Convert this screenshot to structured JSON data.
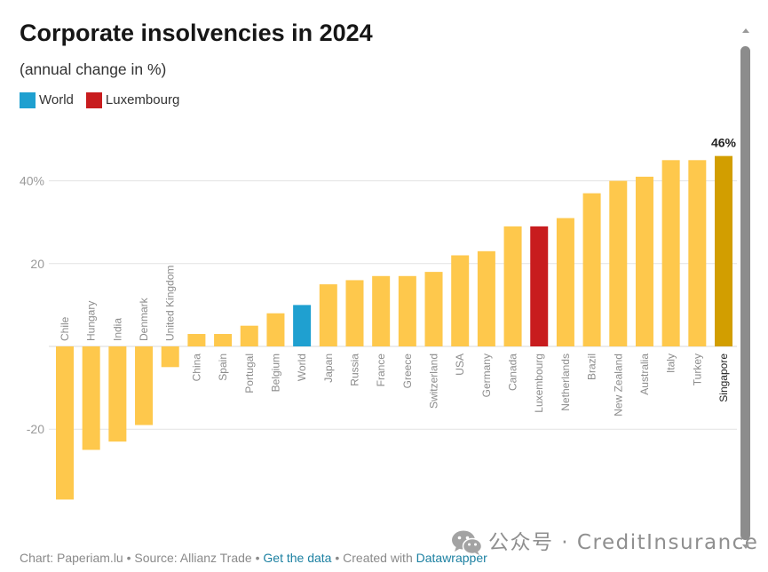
{
  "chart_data": {
    "type": "bar",
    "title": "Corporate insolvencies in 2024",
    "subtitle": "(annual change in %)",
    "categories": [
      "Chile",
      "Hungary",
      "India",
      "Denmark",
      "United Kingdom",
      "China",
      "Spain",
      "Portugal",
      "Belgium",
      "World",
      "Japan",
      "Russia",
      "France",
      "Greece",
      "Switzerland",
      "USA",
      "Germany",
      "Canada",
      "Luxembourg",
      "Netherlands",
      "Brazil",
      "New Zealand",
      "Australia",
      "Italy",
      "Turkey",
      "Singapore"
    ],
    "values": [
      -37,
      -25,
      -23,
      -19,
      -5,
      3,
      3,
      5,
      8,
      10,
      15,
      16,
      17,
      17,
      18,
      22,
      23,
      29,
      29,
      31,
      37,
      40,
      41,
      45,
      45,
      46
    ],
    "ylim": [
      -40,
      50
    ],
    "baseline": 0,
    "yticks": [
      {
        "value": 40,
        "label": "40%"
      },
      {
        "value": 20,
        "label": "20"
      },
      {
        "value": -20,
        "label": "-20"
      }
    ],
    "grid": true,
    "default_color": "#fec84c",
    "bar_colors": {
      "9": "#1fa0d0",
      "18": "#c81c1e",
      "25": "#d29e00"
    },
    "highlight_index": 25,
    "value_labels": [
      {
        "index": 25,
        "label": "46%"
      }
    ],
    "legend": [
      {
        "label": "World",
        "color": "#1fa0d0"
      },
      {
        "label": "Luxembourg",
        "color": "#c81c1e"
      }
    ],
    "legend_position": "top-left"
  },
  "footer": {
    "chart_credit": "Chart: Paperiam.lu",
    "separator": "•",
    "source": "Source: Allianz Trade",
    "get_data_link": "Get the data",
    "created_with": "Created with",
    "tool_link": "Datawrapper",
    "link_color": "#1d81a2"
  },
  "watermark": {
    "icon": "wechat-icon",
    "text": "公众号 · CreditInsurance"
  },
  "scrollbar": {
    "up_icon": "scroll-up-arrow-icon",
    "down_icon": "scroll-down-arrow-icon",
    "thumb_color": "#8c8c8c"
  }
}
